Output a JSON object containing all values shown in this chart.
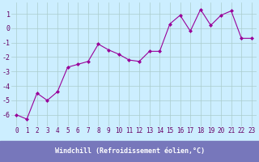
{
  "x": [
    0,
    1,
    2,
    3,
    4,
    5,
    6,
    7,
    8,
    9,
    10,
    11,
    12,
    13,
    14,
    15,
    16,
    17,
    18,
    19,
    20,
    21,
    22,
    23
  ],
  "y": [
    -6.0,
    -6.3,
    -4.5,
    -5.0,
    -4.4,
    -2.7,
    -2.5,
    -2.3,
    -1.1,
    -1.5,
    -1.8,
    -2.2,
    -2.3,
    -1.6,
    -1.6,
    0.3,
    0.9,
    -0.2,
    1.3,
    0.2,
    0.9,
    1.2,
    -0.7,
    -0.7
  ],
  "line_color": "#990099",
  "marker": "D",
  "marker_size": 2,
  "bg_color": "#cceeff",
  "grid_color": "#aacccc",
  "xlabel": "Windchill (Refroidissement éolien,°C)",
  "yticks": [
    -6,
    -5,
    -4,
    -3,
    -2,
    -1,
    0,
    1
  ],
  "xlim": [
    -0.5,
    23.5
  ],
  "ylim": [
    -6.8,
    1.8
  ],
  "xlabel_bg": "#7777bb",
  "tick_label_color": "#660066",
  "tick_fontsize": 5.5,
  "label_fontsize": 6
}
